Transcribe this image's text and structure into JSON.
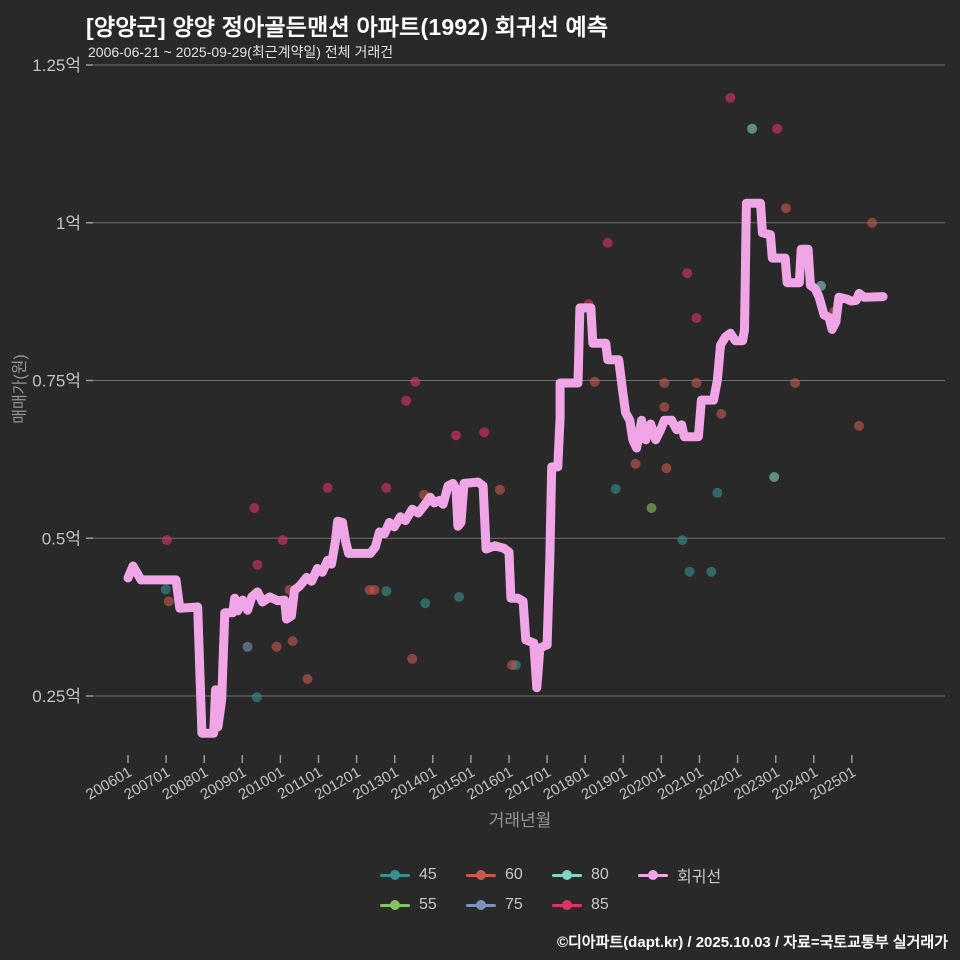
{
  "header": {
    "title": "[양양군] 양양 정아골든맨션 아파트(1992) 회귀선 예측",
    "subtitle": "2006-06-21 ~ 2025-09-29(최근계약일) 전체 거래건"
  },
  "footer": {
    "credit": "©디아파트(dapt.kr) / 2025.10.03 / 자료=국토교통부 실거래가"
  },
  "colors": {
    "background": "#292929",
    "grid": "#6e6e6e",
    "tick": "#9a9a9a",
    "tick_label": "#c2c2c2",
    "axis_title": "#969696",
    "title": "#ffffff",
    "subtitle": "#e2e2e2",
    "legend_text": "#c6c6c6",
    "regression": "#f0a6e6"
  },
  "legend": {
    "rows": [
      [
        {
          "key": "s45",
          "label": "45",
          "color": "#37918c"
        },
        {
          "key": "s60",
          "label": "60",
          "color": "#c85a50"
        },
        {
          "key": "s80",
          "label": "80",
          "color": "#82d4c3"
        },
        {
          "key": "regression",
          "label": "회귀선",
          "color": "#f0a6e6"
        }
      ],
      [
        {
          "key": "s55",
          "label": "55",
          "color": "#82c45f"
        },
        {
          "key": "s75",
          "label": "75",
          "color": "#7b93bd"
        },
        {
          "key": "s85",
          "label": "85",
          "color": "#dd3360"
        }
      ]
    ]
  },
  "chart_data": {
    "type": "scatter",
    "xlabel": "거래년월",
    "ylabel": "매매가(원)",
    "xlim": [
      2005.1,
      2027.4
    ],
    "ylim": [
      0.16,
      1.25
    ],
    "grid": true,
    "legend_position": "bottom",
    "y_ticks": [
      {
        "v": 1.25,
        "label": "1.25억"
      },
      {
        "v": 1.0,
        "label": "1억"
      },
      {
        "v": 0.75,
        "label": "0.75억"
      },
      {
        "v": 0.5,
        "label": "0.5억"
      },
      {
        "v": 0.25,
        "label": "0.25억"
      }
    ],
    "x_ticks": [
      {
        "t": 2006,
        "label": "200601"
      },
      {
        "t": 2007,
        "label": "200701"
      },
      {
        "t": 2008,
        "label": "200801"
      },
      {
        "t": 2009,
        "label": "200901"
      },
      {
        "t": 2010,
        "label": "201001"
      },
      {
        "t": 2011,
        "label": "201101"
      },
      {
        "t": 2012,
        "label": "201201"
      },
      {
        "t": 2013,
        "label": "201301"
      },
      {
        "t": 2014,
        "label": "201401"
      },
      {
        "t": 2015,
        "label": "201501"
      },
      {
        "t": 2016,
        "label": "201601"
      },
      {
        "t": 2017,
        "label": "201701"
      },
      {
        "t": 2018,
        "label": "201801"
      },
      {
        "t": 2019,
        "label": "201901"
      },
      {
        "t": 2020,
        "label": "202001"
      },
      {
        "t": 2021,
        "label": "202101"
      },
      {
        "t": 2022,
        "label": "202201"
      },
      {
        "t": 2023,
        "label": "202301"
      },
      {
        "t": 2024,
        "label": "202401"
      },
      {
        "t": 2025,
        "label": "202501"
      }
    ],
    "series": [
      {
        "name": "45",
        "color": "#37918c",
        "points": [
          [
            2006.99,
            0.419
          ],
          [
            2009.38,
            0.248
          ],
          [
            2012.78,
            0.416
          ],
          [
            2013.8,
            0.397
          ],
          [
            2014.69,
            0.407
          ],
          [
            2016.18,
            0.299
          ],
          [
            2018.8,
            0.578
          ],
          [
            2020.55,
            0.497
          ],
          [
            2020.74,
            0.447
          ],
          [
            2021.31,
            0.447
          ],
          [
            2021.47,
            0.572
          ]
        ]
      },
      {
        "name": "55",
        "color": "#82c45f",
        "points": [
          [
            2019.74,
            0.548
          ]
        ]
      },
      {
        "name": "60",
        "color": "#c85a50",
        "points": [
          [
            2007.07,
            0.4
          ],
          [
            2009.9,
            0.328
          ],
          [
            2010.24,
            0.418
          ],
          [
            2010.32,
            0.337
          ],
          [
            2010.71,
            0.277
          ],
          [
            2012.34,
            0.418
          ],
          [
            2012.47,
            0.418
          ],
          [
            2013.46,
            0.309
          ],
          [
            2013.77,
            0.569
          ],
          [
            2015.76,
            0.577
          ],
          [
            2016.08,
            0.299
          ],
          [
            2018.25,
            0.748
          ],
          [
            2019.32,
            0.618
          ],
          [
            2020.08,
            0.746
          ],
          [
            2020.08,
            0.708
          ],
          [
            2020.13,
            0.611
          ],
          [
            2020.92,
            0.746
          ],
          [
            2021.57,
            0.697
          ],
          [
            2023.27,
            1.023
          ],
          [
            2023.51,
            0.746
          ],
          [
            2024.53,
            0.859
          ],
          [
            2025.19,
            0.678
          ],
          [
            2025.53,
            1.0
          ]
        ]
      },
      {
        "name": "75",
        "color": "#7b93bd",
        "points": [
          [
            2009.14,
            0.328
          ]
        ]
      },
      {
        "name": "80",
        "color": "#82d4c3",
        "points": [
          [
            2022.38,
            1.149
          ],
          [
            2022.96,
            0.597
          ],
          [
            2024.19,
            0.9
          ]
        ]
      },
      {
        "name": "85",
        "color": "#dd3360",
        "points": [
          [
            2007.02,
            0.497
          ],
          [
            2009.32,
            0.548
          ],
          [
            2009.4,
            0.458
          ],
          [
            2010.06,
            0.497
          ],
          [
            2011.24,
            0.58
          ],
          [
            2012.78,
            0.58
          ],
          [
            2013.3,
            0.718
          ],
          [
            2013.54,
            0.748
          ],
          [
            2014.61,
            0.663
          ],
          [
            2015.35,
            0.668
          ],
          [
            2018.09,
            0.871
          ],
          [
            2018.59,
            0.968
          ],
          [
            2020.68,
            0.92
          ],
          [
            2020.92,
            0.849
          ],
          [
            2021.81,
            1.198
          ],
          [
            2023.04,
            1.149
          ]
        ]
      }
    ],
    "regression": {
      "name": "회귀선",
      "color": "#f0a6e6",
      "points": [
        [
          2006.0,
          0.437
        ],
        [
          2006.13,
          0.456
        ],
        [
          2006.24,
          0.445
        ],
        [
          2006.34,
          0.434
        ],
        [
          2007.26,
          0.434
        ],
        [
          2007.36,
          0.389
        ],
        [
          2007.83,
          0.391
        ],
        [
          2007.94,
          0.191
        ],
        [
          2008.25,
          0.191
        ],
        [
          2008.3,
          0.26
        ],
        [
          2008.36,
          0.201
        ],
        [
          2008.46,
          0.244
        ],
        [
          2008.54,
          0.382
        ],
        [
          2008.75,
          0.382
        ],
        [
          2008.8,
          0.405
        ],
        [
          2008.88,
          0.385
        ],
        [
          2009.01,
          0.402
        ],
        [
          2009.14,
          0.386
        ],
        [
          2009.25,
          0.407
        ],
        [
          2009.4,
          0.415
        ],
        [
          2009.53,
          0.399
        ],
        [
          2009.72,
          0.407
        ],
        [
          2009.93,
          0.401
        ],
        [
          2010.11,
          0.402
        ],
        [
          2010.16,
          0.372
        ],
        [
          2010.29,
          0.377
        ],
        [
          2010.37,
          0.418
        ],
        [
          2010.5,
          0.424
        ],
        [
          2010.69,
          0.438
        ],
        [
          2010.82,
          0.432
        ],
        [
          2010.97,
          0.452
        ],
        [
          2011.1,
          0.446
        ],
        [
          2011.24,
          0.465
        ],
        [
          2011.34,
          0.459
        ],
        [
          2011.45,
          0.497
        ],
        [
          2011.5,
          0.527
        ],
        [
          2011.63,
          0.525
        ],
        [
          2011.71,
          0.495
        ],
        [
          2011.79,
          0.476
        ],
        [
          2012.36,
          0.476
        ],
        [
          2012.49,
          0.486
        ],
        [
          2012.6,
          0.51
        ],
        [
          2012.73,
          0.507
        ],
        [
          2012.86,
          0.525
        ],
        [
          2012.99,
          0.518
        ],
        [
          2013.15,
          0.534
        ],
        [
          2013.28,
          0.528
        ],
        [
          2013.46,
          0.546
        ],
        [
          2013.62,
          0.54
        ],
        [
          2013.8,
          0.554
        ],
        [
          2013.93,
          0.565
        ],
        [
          2014.04,
          0.556
        ],
        [
          2014.17,
          0.56
        ],
        [
          2014.27,
          0.554
        ],
        [
          2014.4,
          0.583
        ],
        [
          2014.53,
          0.587
        ],
        [
          2014.61,
          0.578
        ],
        [
          2014.66,
          0.519
        ],
        [
          2014.74,
          0.525
        ],
        [
          2014.82,
          0.587
        ],
        [
          2015.19,
          0.589
        ],
        [
          2015.32,
          0.583
        ],
        [
          2015.4,
          0.483
        ],
        [
          2015.63,
          0.488
        ],
        [
          2015.87,
          0.484
        ],
        [
          2016.0,
          0.478
        ],
        [
          2016.05,
          0.405
        ],
        [
          2016.23,
          0.405
        ],
        [
          2016.37,
          0.4
        ],
        [
          2016.44,
          0.339
        ],
        [
          2016.65,
          0.334
        ],
        [
          2016.73,
          0.263
        ],
        [
          2016.81,
          0.326
        ],
        [
          2017.0,
          0.331
        ],
        [
          2017.07,
          0.465
        ],
        [
          2017.12,
          0.613
        ],
        [
          2017.28,
          0.613
        ],
        [
          2017.34,
          0.691
        ],
        [
          2017.34,
          0.746
        ],
        [
          2017.81,
          0.746
        ],
        [
          2017.86,
          0.865
        ],
        [
          2018.15,
          0.865
        ],
        [
          2018.2,
          0.809
        ],
        [
          2018.54,
          0.809
        ],
        [
          2018.59,
          0.783
        ],
        [
          2018.88,
          0.783
        ],
        [
          2018.98,
          0.735
        ],
        [
          2019.06,
          0.699
        ],
        [
          2019.17,
          0.687
        ],
        [
          2019.25,
          0.656
        ],
        [
          2019.35,
          0.643
        ],
        [
          2019.48,
          0.687
        ],
        [
          2019.59,
          0.656
        ],
        [
          2019.72,
          0.681
        ],
        [
          2019.85,
          0.656
        ],
        [
          2019.98,
          0.672
        ],
        [
          2020.08,
          0.687
        ],
        [
          2020.27,
          0.687
        ],
        [
          2020.4,
          0.672
        ],
        [
          2020.53,
          0.68
        ],
        [
          2020.6,
          0.661
        ],
        [
          2020.97,
          0.661
        ],
        [
          2021.05,
          0.719
        ],
        [
          2021.37,
          0.719
        ],
        [
          2021.47,
          0.751
        ],
        [
          2021.55,
          0.806
        ],
        [
          2021.68,
          0.819
        ],
        [
          2021.81,
          0.825
        ],
        [
          2021.94,
          0.813
        ],
        [
          2022.13,
          0.813
        ],
        [
          2022.18,
          0.83
        ],
        [
          2022.23,
          1.031
        ],
        [
          2022.6,
          1.031
        ],
        [
          2022.65,
          0.984
        ],
        [
          2022.86,
          0.981
        ],
        [
          2022.91,
          0.944
        ],
        [
          2023.25,
          0.944
        ],
        [
          2023.3,
          0.905
        ],
        [
          2023.62,
          0.905
        ],
        [
          2023.67,
          0.958
        ],
        [
          2023.85,
          0.958
        ],
        [
          2023.91,
          0.901
        ],
        [
          2024.04,
          0.895
        ],
        [
          2024.14,
          0.882
        ],
        [
          2024.27,
          0.854
        ],
        [
          2024.4,
          0.85
        ],
        [
          2024.48,
          0.831
        ],
        [
          2024.58,
          0.843
        ],
        [
          2024.66,
          0.882
        ],
        [
          2024.87,
          0.879
        ],
        [
          2024.98,
          0.876
        ],
        [
          2025.11,
          0.877
        ],
        [
          2025.19,
          0.888
        ],
        [
          2025.32,
          0.882
        ],
        [
          2025.82,
          0.883
        ]
      ]
    }
  }
}
